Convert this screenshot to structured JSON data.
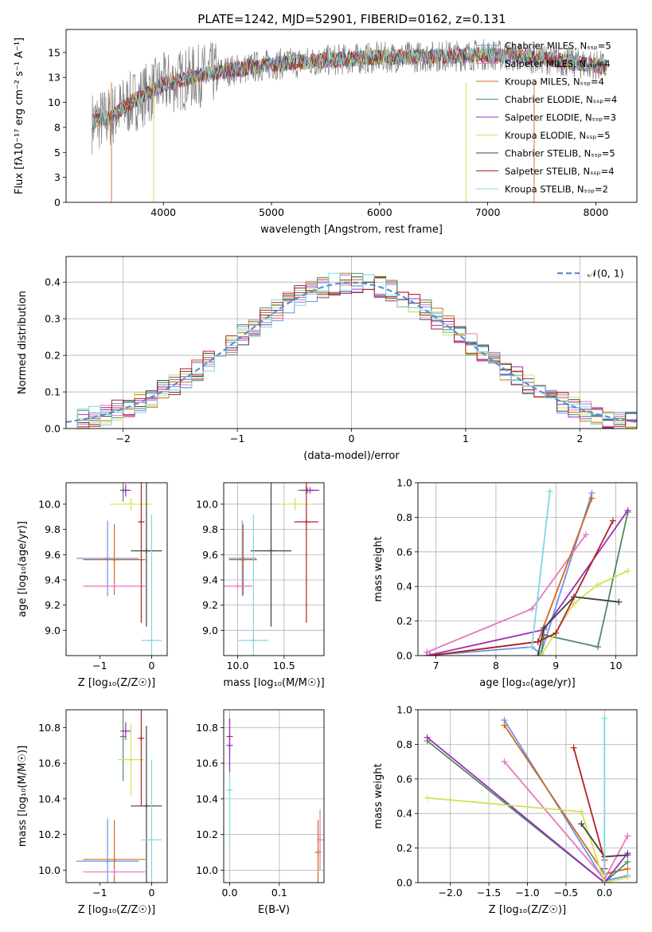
{
  "figure_title": "PLATE=1242, MJD=52901, FIBERID=0162, z=0.131",
  "chart_data": [
    {
      "id": "spectrum",
      "type": "line",
      "xlabel": "wavelength [Angstrom, rest frame]",
      "ylabel": "Flux [fλ10⁻¹⁷ erg cm⁻² s⁻¹ A⁻¹]",
      "xlim": [
        3100,
        8380
      ],
      "ylim": [
        0,
        17.3
      ],
      "xticks": [
        4000,
        5000,
        6000,
        7000,
        8000
      ],
      "yticks": [
        0.0,
        2.5,
        5.0,
        7.5,
        10.0,
        12.5,
        15.0
      ],
      "grid": false,
      "legend_position": "top-right",
      "data_range": [
        3340,
        8100
      ],
      "continuum": {
        "x": [
          3340,
          3500,
          3700,
          4000,
          4300,
          4600,
          5000,
          5500,
          6000,
          6500,
          7000,
          7500,
          8000,
          8100
        ],
        "y": [
          8.0,
          8.5,
          10.0,
          11.8,
          12.6,
          13.2,
          13.8,
          14.2,
          14.5,
          14.6,
          14.8,
          14.4,
          13.7,
          13.5
        ]
      },
      "series": [
        {
          "name": "Chabrier MILES, N_SSP=5",
          "color": "#6495ed"
        },
        {
          "name": "Salpeter MILES, N_SSP=4",
          "color": "#e377c2"
        },
        {
          "name": "Kroupa MILES, N_SSP=4",
          "color": "#d2691e"
        },
        {
          "name": "Chabrier ELODIE, N_SSP=4",
          "color": "#4f8a5f"
        },
        {
          "name": "Salpeter ELODIE, N_SSP=3",
          "color": "#9b30b8"
        },
        {
          "name": "Kroupa ELODIE, N_SSP=5",
          "color": "#d4e157"
        },
        {
          "name": "Chabrier STELIB, N_SSP=5",
          "color": "#404040"
        },
        {
          "name": "Salpeter STELIB, N_SSP=4",
          "color": "#b22222"
        },
        {
          "name": "Kroupa STELIB, N_SSP=2",
          "color": "#7fd7dc"
        }
      ],
      "data_color": "#808080",
      "dropouts": [
        {
          "x": 3520,
          "color": "#e07040"
        },
        {
          "x": 3910,
          "color": "#d4e157"
        },
        {
          "x": 6800,
          "color": "#d4e157"
        },
        {
          "x": 7430,
          "color": "#e07040"
        }
      ]
    },
    {
      "id": "residuals",
      "type": "histogram",
      "xlabel": "(data-model)/error",
      "ylabel": "Normed distribution",
      "xlim": [
        -2.5,
        2.5
      ],
      "ylim": [
        0,
        0.47
      ],
      "xticks": [
        -2,
        -1,
        0,
        1,
        2
      ],
      "yticks": [
        0.0,
        0.1,
        0.2,
        0.3,
        0.4
      ],
      "grid": true,
      "bin_width": 0.1,
      "legend_label": "𝒩(0, 1)",
      "legend_position": "top-right",
      "gaussian_color": "#5a8fd0"
    },
    {
      "id": "age-vs-Z",
      "type": "errorbar",
      "xlabel": "Z [log₁₀(Z/Z☉)]",
      "ylabel": "age  [log₁₀(age/yr)]",
      "xlim": [
        -1.65,
        0.3
      ],
      "ylim": [
        8.8,
        10.17
      ],
      "xticks": [
        -1,
        0
      ],
      "yticks": [
        9.0,
        9.2,
        9.4,
        9.6,
        9.8,
        10.0
      ],
      "grid": false,
      "points": [
        {
          "x": -0.85,
          "y": 9.57,
          "xerr": 0.6,
          "yerr": 0.3,
          "color": "#6495ed"
        },
        {
          "x": -0.72,
          "y": 9.56,
          "xerr": 0.6,
          "yerr": 0.28,
          "color": "#d2691e"
        },
        {
          "x": -0.72,
          "y": 9.35,
          "xerr": 0.6,
          "yerr": 0.0,
          "color": "#e377c2"
        },
        {
          "x": -0.55,
          "y": 10.11,
          "xerr": 0.05,
          "yerr": 0.09,
          "color": "#4f8a5f"
        },
        {
          "x": -0.5,
          "y": 10.11,
          "xerr": 0.1,
          "yerr": 0.05,
          "color": "#9b30b8"
        },
        {
          "x": -0.4,
          "y": 10.0,
          "xerr": 0.4,
          "yerr": 0.05,
          "color": "#d4e157"
        },
        {
          "x": -0.2,
          "y": 9.86,
          "xerr": 0.02,
          "yerr": 0.8,
          "color": "#b22222"
        },
        {
          "x": -0.1,
          "y": 9.63,
          "xerr": 0.3,
          "yerr": 0.6,
          "color": "#404040"
        },
        {
          "x": 0.0,
          "y": 8.92,
          "xerr": 0.2,
          "yerr": 1.0,
          "color": "#7fd7dc"
        }
      ]
    },
    {
      "id": "age-vs-mass",
      "type": "errorbar",
      "xlabel": "mass [log₁₀(M/M☉)]",
      "xlim": [
        9.85,
        10.93
      ],
      "ylim": [
        8.8,
        10.17
      ],
      "xticks": [
        10.0,
        10.5
      ],
      "yticks": [
        9.0,
        9.2,
        9.4,
        9.6,
        9.8,
        10.0
      ],
      "grid": true,
      "points": [
        {
          "x": 10.05,
          "y": 9.57,
          "xerr": 0.15,
          "yerr": 0.3,
          "color": "#6495ed"
        },
        {
          "x": 10.06,
          "y": 9.56,
          "xerr": 0.15,
          "yerr": 0.28,
          "color": "#d2691e"
        },
        {
          "x": 10.0,
          "y": 9.35,
          "xerr": 0.16,
          "yerr": 0.0,
          "color": "#e377c2"
        },
        {
          "x": 10.75,
          "y": 10.11,
          "xerr": 0.1,
          "yerr": 0.0,
          "color": "#4f8a5f"
        },
        {
          "x": 10.78,
          "y": 10.11,
          "xerr": 0.1,
          "yerr": 0.0,
          "color": "#9b30b8"
        },
        {
          "x": 10.62,
          "y": 10.0,
          "xerr": 0.18,
          "yerr": 0.05,
          "color": "#d4e157"
        },
        {
          "x": 10.74,
          "y": 9.86,
          "xerr": 0.13,
          "yerr": 0.8,
          "color": "#b22222"
        },
        {
          "x": 10.36,
          "y": 9.63,
          "xerr": 0.22,
          "yerr": 0.6,
          "color": "#404040"
        },
        {
          "x": 10.17,
          "y": 8.92,
          "xerr": 0.16,
          "yerr": 1.0,
          "color": "#7fd7dc"
        }
      ]
    },
    {
      "id": "weight-vs-age",
      "type": "line",
      "xlabel": "age  [log₁₀(age/yr)]",
      "ylabel": "mass weight",
      "xlim": [
        6.7,
        10.35
      ],
      "ylim": [
        0,
        1.0
      ],
      "xticks": [
        7,
        8,
        9,
        10
      ],
      "yticks": [
        0.0,
        0.2,
        0.4,
        0.6,
        0.8,
        1.0
      ],
      "grid": true,
      "series": [
        {
          "color": "#6495ed",
          "x": [
            6.85,
            8.6,
            8.75,
            9.6
          ],
          "y": [
            0.0,
            0.05,
            0.01,
            0.94
          ]
        },
        {
          "color": "#e377c2",
          "x": [
            6.85,
            8.6,
            9.5
          ],
          "y": [
            0.02,
            0.27,
            0.7
          ]
        },
        {
          "color": "#d2691e",
          "x": [
            6.9,
            8.7,
            9.6
          ],
          "y": [
            0.0,
            0.08,
            0.91
          ]
        },
        {
          "color": "#4f8a5f",
          "x": [
            8.75,
            8.8,
            9.7,
            10.2
          ],
          "y": [
            0.0,
            0.12,
            0.05,
            0.83
          ]
        },
        {
          "color": "#9b30b8",
          "x": [
            6.85,
            8.8,
            10.2
          ],
          "y": [
            0.0,
            0.15,
            0.84
          ]
        },
        {
          "color": "#d4e157",
          "x": [
            8.7,
            8.75,
            9.3,
            9.7,
            10.2
          ],
          "y": [
            0.0,
            0.0,
            0.3,
            0.41,
            0.49
          ]
        },
        {
          "color": "#404040",
          "x": [
            8.7,
            8.8,
            9.3,
            10.05
          ],
          "y": [
            0.0,
            0.16,
            0.34,
            0.31
          ]
        },
        {
          "color": "#b22222",
          "x": [
            6.9,
            8.7,
            9.0,
            9.95
          ],
          "y": [
            0.0,
            0.08,
            0.13,
            0.78
          ]
        },
        {
          "color": "#7fd7dc",
          "x": [
            8.6,
            8.9
          ],
          "y": [
            0.05,
            0.95
          ]
        }
      ]
    },
    {
      "id": "mass-vs-Z",
      "type": "errorbar",
      "xlabel": "Z [log₁₀(Z/Z☉)]",
      "ylabel": "mass [log₁₀(M/M☉)]",
      "xlim": [
        -1.65,
        0.3
      ],
      "ylim": [
        9.93,
        10.9
      ],
      "xticks": [
        -1,
        0
      ],
      "yticks": [
        10.0,
        10.2,
        10.4,
        10.6,
        10.8
      ],
      "grid": false,
      "points": [
        {
          "x": -0.85,
          "y": 10.05,
          "xerr": 0.6,
          "yerr": 0.24,
          "color": "#6495ed"
        },
        {
          "x": -0.72,
          "y": 10.06,
          "xerr": 0.6,
          "yerr": 0.22,
          "color": "#d2691e"
        },
        {
          "x": -0.72,
          "y": 9.99,
          "xerr": 0.6,
          "yerr": 0.0,
          "color": "#e377c2"
        },
        {
          "x": -0.55,
          "y": 10.75,
          "xerr": 0.05,
          "yerr": 0.25,
          "color": "#4f8a5f"
        },
        {
          "x": -0.5,
          "y": 10.78,
          "xerr": 0.1,
          "yerr": 0.05,
          "color": "#9b30b8"
        },
        {
          "x": -0.4,
          "y": 10.62,
          "xerr": 0.25,
          "yerr": 0.2,
          "color": "#d4e157"
        },
        {
          "x": -0.2,
          "y": 10.74,
          "xerr": 0.02,
          "yerr": 0.38,
          "color": "#b22222"
        },
        {
          "x": -0.1,
          "y": 10.36,
          "xerr": 0.3,
          "yerr": 0.45,
          "color": "#404040"
        },
        {
          "x": 0.0,
          "y": 10.17,
          "xerr": 0.2,
          "yerr": 0.45,
          "color": "#7fd7dc"
        }
      ]
    },
    {
      "id": "mass-vs-ebv",
      "type": "errorbar",
      "xlabel": "E(B-V)",
      "xlim": [
        -0.012,
        0.19
      ],
      "ylim": [
        9.93,
        10.9
      ],
      "xticks": [
        0.0,
        0.1
      ],
      "yticks": [
        10.0,
        10.2,
        10.4,
        10.6,
        10.8
      ],
      "grid": true,
      "points": [
        {
          "x": 0.0,
          "y": 10.75,
          "xerr": 0.0,
          "yerr": 0.1,
          "color": "#b22222"
        },
        {
          "x": 0.0,
          "y": 10.45,
          "xerr": 0.0,
          "yerr": 0.3,
          "color": "#7fd7dc"
        },
        {
          "x": 0.0,
          "y": 10.7,
          "xerr": 0.0,
          "yerr": 0.15,
          "color": "#9b30b8"
        },
        {
          "x": 0.178,
          "y": 10.1,
          "xerr": 0.0,
          "yerr": 0.18,
          "color": "#d2691e"
        },
        {
          "x": 0.182,
          "y": 10.17,
          "xerr": 0.0,
          "yerr": 0.17,
          "color": "#e377c2"
        }
      ]
    },
    {
      "id": "weight-vs-Z",
      "type": "line",
      "xlabel": "Z [log₁₀(Z/Z☉)]",
      "ylabel": "mass weight",
      "xlim": [
        -2.42,
        0.42
      ],
      "ylim": [
        0,
        1.0
      ],
      "xticks": [
        -2.0,
        -1.5,
        -1.0,
        -0.5,
        0.0
      ],
      "yticks": [
        0.0,
        0.2,
        0.4,
        0.6,
        0.8,
        1.0
      ],
      "grid": true,
      "series": [
        {
          "color": "#6495ed",
          "x": [
            -1.3,
            0.0,
            0.3
          ],
          "y": [
            0.94,
            0.01,
            0.04
          ]
        },
        {
          "color": "#e377c2",
          "x": [
            -1.3,
            0.0,
            0.3
          ],
          "y": [
            0.7,
            0.02,
            0.27
          ]
        },
        {
          "color": "#d2691e",
          "x": [
            -1.3,
            0.0,
            0.3
          ],
          "y": [
            0.91,
            0.05,
            0.08
          ]
        },
        {
          "color": "#4f8a5f",
          "x": [
            -2.3,
            0.0,
            0.3
          ],
          "y": [
            0.82,
            0.0,
            0.12
          ]
        },
        {
          "color": "#9b30b8",
          "x": [
            -2.3,
            0.0,
            0.3
          ],
          "y": [
            0.84,
            0.0,
            0.17
          ]
        },
        {
          "color": "#d4e157",
          "x": [
            -2.3,
            -0.3,
            0.0,
            0.3
          ],
          "y": [
            0.49,
            0.41,
            0.0,
            0.03
          ]
        },
        {
          "color": "#404040",
          "x": [
            -0.3,
            0.0,
            0.3
          ],
          "y": [
            0.34,
            0.15,
            0.16
          ]
        },
        {
          "color": "#b22222",
          "x": [
            -0.4,
            0.0,
            0.0
          ],
          "y": [
            0.78,
            0.13,
            0.08
          ]
        },
        {
          "color": "#7fd7dc",
          "x": [
            0.0,
            0.0
          ],
          "y": [
            0.95,
            0.05
          ]
        }
      ]
    }
  ]
}
